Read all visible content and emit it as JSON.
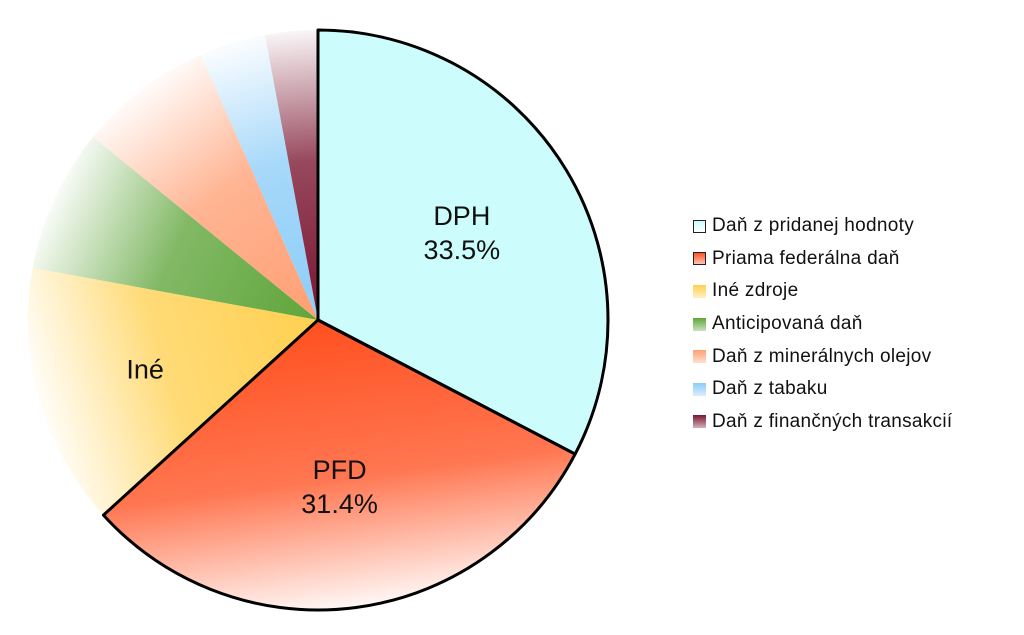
{
  "chart_data": {
    "type": "pie",
    "slices": [
      {
        "label": "Daň z pridanej hodnoty",
        "short": "DPH",
        "value": 33.5,
        "value_label": "33.5%",
        "color": "#cdfcfc",
        "highlight": true
      },
      {
        "label": "Priama federálna daň",
        "short": "PFD",
        "value": 31.4,
        "value_label": "31.4%",
        "color": "#ff5020",
        "highlight": true
      },
      {
        "label": "Iné zdroje",
        "short": "Iné",
        "value": 15.0,
        "value_label": "",
        "color": "#ffd050",
        "highlight": false
      },
      {
        "label": "Anticipovaná daň",
        "short": "",
        "value": 8.2,
        "value_label": "",
        "color": "#5fa53a",
        "highlight": false
      },
      {
        "label": "Daň z minerálnych olejov",
        "short": "",
        "value": 7.7,
        "value_label": "",
        "color": "#ff9f74",
        "highlight": false
      },
      {
        "label": "Daň z tabaku",
        "short": "",
        "value": 3.8,
        "value_label": "",
        "color": "#8dcdf8",
        "highlight": false
      },
      {
        "label": "Daň z finančných transakcií",
        "short": "",
        "value": 3.0,
        "value_label": "",
        "color": "#7a1530",
        "highlight": false
      }
    ],
    "start_angle_deg": 0,
    "direction": "clockwise",
    "legend_position": "right",
    "title": ""
  }
}
